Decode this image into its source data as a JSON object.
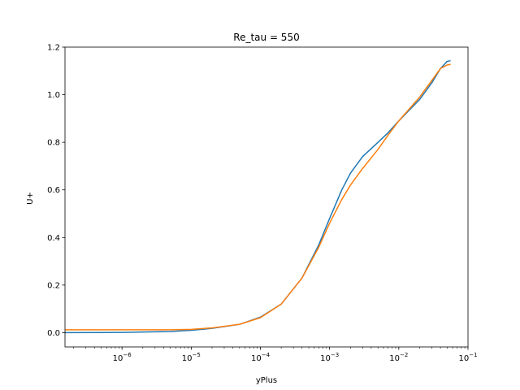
{
  "chart_data": {
    "type": "line",
    "title": "Re_tau = 550",
    "xlabel": "yPlus",
    "ylabel": "U+",
    "xscale": "log",
    "xlim": [
      1.5e-07,
      0.1
    ],
    "ylim": [
      -0.06,
      1.2
    ],
    "grid": false,
    "x_ticks": [
      {
        "value": 1e-06,
        "base": "10",
        "exp": "−6"
      },
      {
        "value": 1e-05,
        "base": "10",
        "exp": "−5"
      },
      {
        "value": 0.0001,
        "base": "10",
        "exp": "−4"
      },
      {
        "value": 0.001,
        "base": "10",
        "exp": "−3"
      },
      {
        "value": 0.01,
        "base": "10",
        "exp": "−2"
      },
      {
        "value": 0.1,
        "base": "10",
        "exp": "−1"
      }
    ],
    "y_ticks": [
      {
        "value": 0.0,
        "label": "0.0"
      },
      {
        "value": 0.2,
        "label": "0.2"
      },
      {
        "value": 0.4,
        "label": "0.4"
      },
      {
        "value": 0.6,
        "label": "0.6"
      },
      {
        "value": 0.8,
        "label": "0.8"
      },
      {
        "value": 1.0,
        "label": "1.0"
      },
      {
        "value": 1.2,
        "label": "1.2"
      }
    ],
    "series": [
      {
        "color": "#1f77b4",
        "points": [
          [
            1.5e-07,
            0.0
          ],
          [
            1e-06,
            0.001
          ],
          [
            5e-06,
            0.005
          ],
          [
            1e-05,
            0.01
          ],
          [
            2e-05,
            0.018
          ],
          [
            5e-05,
            0.035
          ],
          [
            0.0001,
            0.065
          ],
          [
            0.0002,
            0.12
          ],
          [
            0.0004,
            0.23
          ],
          [
            0.0007,
            0.37
          ],
          [
            0.001,
            0.48
          ],
          [
            0.0015,
            0.6
          ],
          [
            0.002,
            0.67
          ],
          [
            0.003,
            0.74
          ],
          [
            0.005,
            0.8
          ],
          [
            0.007,
            0.84
          ],
          [
            0.01,
            0.89
          ],
          [
            0.02,
            0.98
          ],
          [
            0.03,
            1.05
          ],
          [
            0.04,
            1.11
          ],
          [
            0.05,
            1.14
          ],
          [
            0.056,
            1.143
          ]
        ]
      },
      {
        "color": "#ff7f0e",
        "points": [
          [
            1.5e-07,
            0.012
          ],
          [
            1e-06,
            0.012
          ],
          [
            5e-06,
            0.012
          ],
          [
            1e-05,
            0.014
          ],
          [
            2e-05,
            0.02
          ],
          [
            5e-05,
            0.035
          ],
          [
            0.0001,
            0.063
          ],
          [
            0.0002,
            0.12
          ],
          [
            0.0004,
            0.23
          ],
          [
            0.0007,
            0.36
          ],
          [
            0.001,
            0.46
          ],
          [
            0.0015,
            0.56
          ],
          [
            0.002,
            0.62
          ],
          [
            0.003,
            0.69
          ],
          [
            0.005,
            0.77
          ],
          [
            0.007,
            0.83
          ],
          [
            0.01,
            0.89
          ],
          [
            0.02,
            0.99
          ],
          [
            0.03,
            1.06
          ],
          [
            0.04,
            1.11
          ],
          [
            0.05,
            1.125
          ],
          [
            0.056,
            1.128
          ]
        ]
      }
    ]
  }
}
